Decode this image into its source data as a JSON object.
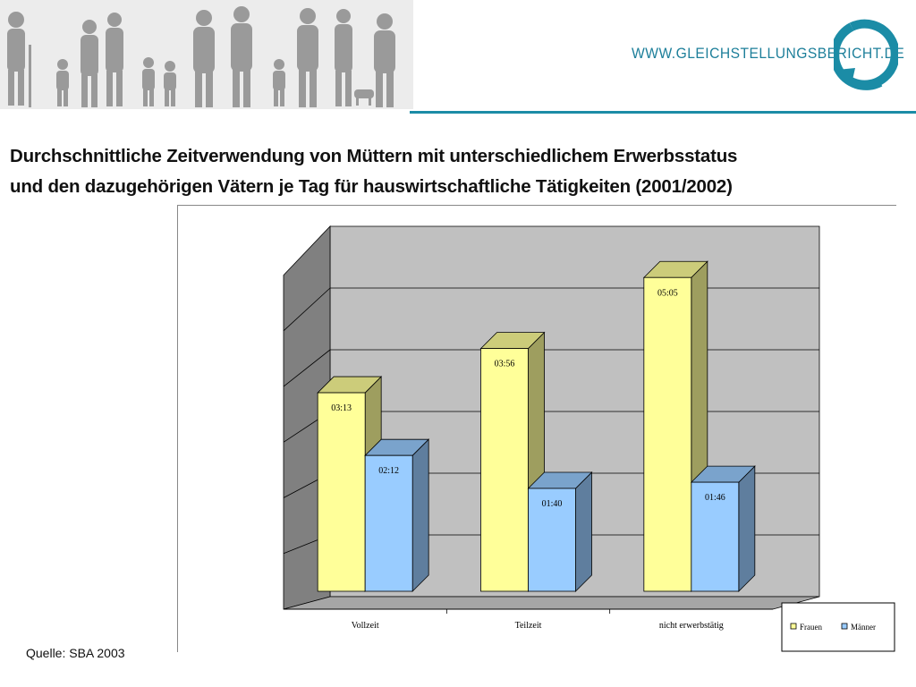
{
  "header": {
    "site_url": "WWW.GLEICHSTELLUNGSBERICHT.DE",
    "accent_color": "#1b8ca6"
  },
  "title": {
    "line1": "Durchschnittliche Zeitverwendung von Müttern mit unterschiedlichem Erwerbsstatus",
    "line2": "und den dazugehörigen Vätern je Tag für hauswirtschaftliche Tätigkeiten (2001/2002)"
  },
  "source": "Quelle: SBA 2003",
  "chart_data": {
    "type": "bar",
    "title": "Durchschnittliche Zeitverwendung von Müttern mit unterschiedlichem Erwerbsstatus und den dazugehörigen Vätern je Tag für hauswirtschaftliche Tätigkeiten (2001/2002)",
    "categories": [
      "Vollzeit",
      "Teilzeit",
      "nicht erwerbstätig"
    ],
    "series": [
      {
        "name": "Frauen",
        "values": [
          193,
          236,
          305
        ],
        "labels": [
          "03:13",
          "03:56",
          "05:05"
        ],
        "color": "#ffff99"
      },
      {
        "name": "Männer",
        "values": [
          132,
          100,
          106
        ],
        "labels": [
          "02:12",
          "01:40",
          "01:46"
        ],
        "color": "#99ccff"
      }
    ],
    "unit": "minutes (hh:mm)",
    "ylim": [
      0,
      360
    ],
    "grid": true,
    "legend": "bottom-right",
    "xlabel": "",
    "ylabel": ""
  }
}
